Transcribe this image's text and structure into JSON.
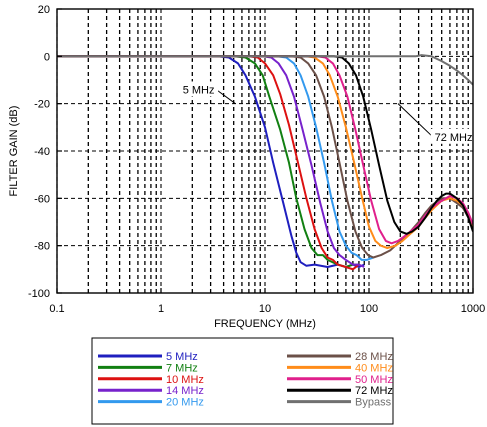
{
  "chart_data": {
    "type": "line",
    "title": "",
    "xlabel": "FREQUENCY (MHz)",
    "ylabel": "FILTER GAIN (dB)",
    "xscale": "log",
    "xlim": [
      0.1,
      1000
    ],
    "ylim": [
      -100,
      20
    ],
    "x_ticks": [
      0.1,
      1,
      10,
      100,
      1000
    ],
    "x_tick_labels": [
      "0.1",
      "1",
      "10",
      "100",
      "1000"
    ],
    "y_ticks": [
      20,
      0,
      -20,
      -40,
      -60,
      -80,
      -100
    ],
    "y_tick_labels": [
      "20",
      "0",
      "-20",
      "-40",
      "-60",
      "-80",
      "-100"
    ],
    "grid": {
      "major": "dashed",
      "minor_x": "dashed"
    },
    "legend": {
      "placement": "bottom",
      "columns": 2
    },
    "annotations": [
      {
        "text": "5 MHz",
        "x": 2.3,
        "y": -14,
        "arrow_to": [
          5.2,
          -20
        ]
      },
      {
        "text": "72 MHz",
        "x": 650,
        "y": -34,
        "arrow_to": [
          190,
          -20
        ]
      }
    ],
    "series": [
      {
        "name": "5 MHz",
        "color": "#1f1fbf",
        "x": [
          0.1,
          3.5,
          4.5,
          5.5,
          6.5,
          8,
          10,
          12,
          15,
          18,
          20,
          22,
          25,
          30,
          40,
          50,
          60,
          70,
          80,
          90
        ],
        "y": [
          0,
          0,
          -0.5,
          -3,
          -8,
          -17,
          -30,
          -45,
          -62,
          -76,
          -83,
          -87,
          -88.5,
          -88,
          -89,
          -88,
          -89,
          -88,
          -89,
          -88
        ]
      },
      {
        "name": "7 MHz",
        "color": "#128012",
        "x": [
          0.1,
          5,
          6.5,
          8,
          9.5,
          11,
          14,
          17,
          20,
          24,
          28,
          32,
          36,
          40,
          50,
          60,
          70,
          80
        ],
        "y": [
          0,
          0,
          -0.5,
          -3,
          -8,
          -17,
          -31,
          -45,
          -60,
          -73,
          -81,
          -84,
          -84,
          -86,
          -88,
          -89,
          -88,
          -88
        ]
      },
      {
        "name": "10 MHz",
        "color": "#dd1111",
        "x": [
          0.1,
          7,
          8.5,
          10,
          12,
          14,
          17,
          20,
          25,
          30,
          35,
          40,
          45,
          50,
          60,
          70,
          80
        ],
        "y": [
          0,
          0,
          -0.5,
          -3,
          -8,
          -16,
          -29,
          -42,
          -60,
          -73,
          -81,
          -85,
          -86,
          -88,
          -89,
          -90,
          -88
        ]
      },
      {
        "name": "14 MHz",
        "color": "#7722cc",
        "x": [
          0.1,
          9.5,
          11.5,
          13.5,
          16,
          19,
          23,
          28,
          34,
          40,
          46,
          52,
          60,
          70,
          80,
          90
        ],
        "y": [
          0,
          0,
          -0.5,
          -3,
          -8,
          -17,
          -31,
          -46,
          -62,
          -74,
          -81,
          -84,
          -86,
          -88,
          -88,
          -89
        ]
      },
      {
        "name": "20 MHz",
        "color": "#3399ee",
        "x": [
          0.1,
          13,
          16,
          19,
          22,
          26,
          31,
          37,
          44,
          52,
          60,
          68,
          76,
          85,
          95,
          110
        ],
        "y": [
          0,
          0,
          -0.5,
          -3,
          -8,
          -17,
          -30,
          -45,
          -61,
          -74,
          -80,
          -83,
          -84,
          -86,
          -86,
          -85
        ]
      },
      {
        "name": "28 MHz",
        "color": "#6b5048",
        "x": [
          0.1,
          18,
          22,
          26,
          31,
          37,
          44,
          52,
          62,
          74,
          86,
          98,
          110,
          130,
          160,
          200,
          250,
          300,
          350,
          400,
          500,
          600,
          700,
          800,
          900,
          1000
        ],
        "y": [
          0,
          0,
          -0.5,
          -3,
          -8,
          -17,
          -30,
          -45,
          -61,
          -74,
          -81,
          -84,
          -85,
          -84,
          -82,
          -78,
          -74,
          -70,
          -66,
          -63,
          -60,
          -60,
          -62,
          -64,
          -68,
          -73
        ]
      },
      {
        "name": "40 MHz",
        "color": "#ff8c1a",
        "x": [
          0.1,
          25,
          30,
          36,
          42,
          50,
          60,
          72,
          86,
          100,
          115,
          130,
          150,
          180,
          210,
          250,
          300,
          350,
          400,
          500,
          600,
          700,
          800,
          900,
          1000
        ],
        "y": [
          0,
          0,
          -0.5,
          -3,
          -8,
          -17,
          -30,
          -45,
          -60,
          -72,
          -78,
          -80,
          -81,
          -80,
          -78,
          -75,
          -72,
          -68,
          -65,
          -61,
          -60,
          -61,
          -63,
          -67,
          -72
        ]
      },
      {
        "name": "50 MHz",
        "color": "#e0208c",
        "x": [
          0.1,
          32,
          38,
          45,
          52,
          62,
          74,
          88,
          105,
          125,
          145,
          165,
          190,
          220,
          250,
          300,
          350,
          400,
          500,
          600,
          700,
          800,
          900,
          1000
        ],
        "y": [
          0,
          0,
          -0.5,
          -3,
          -8,
          -17,
          -31,
          -46,
          -61,
          -73,
          -78,
          -79,
          -78,
          -76,
          -74,
          -71,
          -67,
          -64,
          -61,
          -59,
          -60,
          -62,
          -66,
          -71
        ]
      },
      {
        "name": "72 MHz",
        "color": "#000000",
        "x": [
          0.1,
          46,
          55,
          64,
          75,
          88,
          105,
          125,
          150,
          175,
          200,
          230,
          260,
          300,
          350,
          400,
          450,
          500,
          550,
          600,
          700,
          800,
          900,
          1000
        ],
        "y": [
          0,
          0,
          -0.5,
          -3,
          -8,
          -17,
          -31,
          -46,
          -61,
          -70,
          -74,
          -75,
          -74,
          -72,
          -68,
          -64,
          -61,
          -59,
          -58,
          -58,
          -60,
          -63,
          -68,
          -74
        ]
      },
      {
        "name": "Bypass",
        "color": "#707070",
        "x": [
          0.1,
          100,
          200,
          280,
          320,
          400,
          500,
          600,
          700,
          800,
          900,
          1000
        ],
        "y": [
          0,
          0,
          0,
          0,
          0.5,
          0,
          -2,
          -4,
          -6,
          -8,
          -10,
          -12
        ]
      }
    ]
  }
}
